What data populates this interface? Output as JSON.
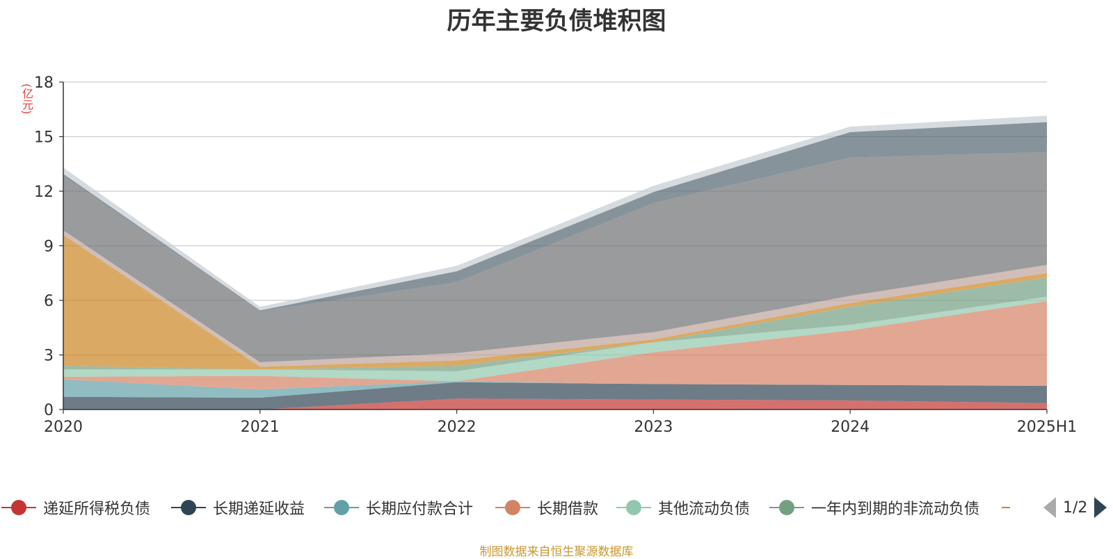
{
  "chart_data": {
    "type": "area",
    "title": "历年主要负债堆积图",
    "unit_label": "(亿元)",
    "source_note": "制图数据来自恒生聚源数据库",
    "categories": [
      "2020",
      "2021",
      "2022",
      "2023",
      "2024",
      "2025H1"
    ],
    "ylim": [
      0,
      18
    ],
    "yticks": [
      "0",
      "3",
      "6",
      "9",
      "12",
      "15",
      "18"
    ],
    "grid": true,
    "stacked": true,
    "legend_position": "bottom",
    "legend_page": "1/2",
    "series": [
      {
        "name": "递延所得税负债",
        "color": "#c23531",
        "values": [
          0.0,
          0.0,
          0.6,
          0.55,
          0.5,
          0.35
        ]
      },
      {
        "name": "长期递延收益",
        "color": "#2f4554",
        "values": [
          0.7,
          0.65,
          0.9,
          0.85,
          0.85,
          0.95
        ]
      },
      {
        "name": "长期应付款合计",
        "color": "#61a0a8",
        "values": [
          0.95,
          0.45,
          0.05,
          0.0,
          0.0,
          0.0
        ]
      },
      {
        "name": "长期借款",
        "color": "#d48265",
        "values": [
          0.15,
          0.75,
          0.0,
          1.75,
          3.0,
          4.65
        ]
      },
      {
        "name": "其他流动负债",
        "color": "#91c7ae",
        "values": [
          0.4,
          0.35,
          0.55,
          0.55,
          0.3,
          0.25
        ]
      },
      {
        "name": "一年内到期的非流动负债",
        "color": "#749f83",
        "values": [
          0.2,
          0.0,
          0.3,
          0.0,
          1.0,
          1.05
        ]
      },
      {
        "name": "",
        "color": "#ca8622",
        "values": [
          7.2,
          0.15,
          0.3,
          0.15,
          0.2,
          0.25
        ]
      },
      {
        "name": "",
        "color": "#bda29a",
        "values": [
          0.25,
          0.25,
          0.4,
          0.4,
          0.4,
          0.45
        ]
      },
      {
        "name": "",
        "color": "#6e7074",
        "values": [
          3.0,
          2.8,
          3.9,
          7.1,
          7.6,
          6.2
        ]
      },
      {
        "name": "",
        "color": "#546570",
        "values": [
          0.1,
          0.05,
          0.6,
          0.6,
          1.4,
          1.65
        ]
      },
      {
        "name": "",
        "color": "#c4ccd3",
        "values": [
          0.35,
          0.2,
          0.3,
          0.35,
          0.3,
          0.35
        ]
      }
    ]
  }
}
